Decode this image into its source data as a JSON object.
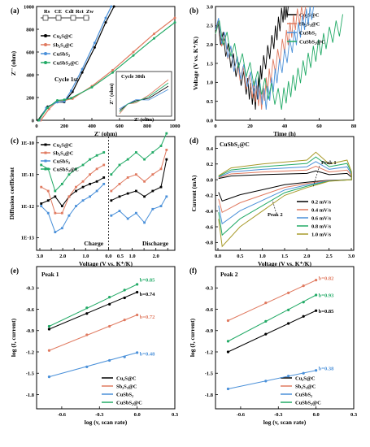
{
  "chart_data": [
    {
      "panel": "(a)",
      "type": "line",
      "xlabel": "Z' (ohm)",
      "ylabel": "Z'' (ohm)",
      "xlim": [
        0,
        1000
      ],
      "ylim": [
        0,
        1000
      ],
      "xticks": [
        "0",
        "200",
        "400",
        "600",
        "800",
        "1000"
      ],
      "yticks": [
        "0",
        "200",
        "400",
        "600",
        "800",
        "1000"
      ],
      "annotation": "Cycle 1st",
      "circuit": {
        "labels": [
          "Rs",
          "CE",
          "CdI",
          "Rct",
          "Zw"
        ]
      },
      "inset": {
        "title": "Cycle 30th",
        "ylabel": "Z'' (ohm)",
        "xlabel": "Z' (ohm)"
      },
      "series": [
        {
          "name": "Cu₂S@C",
          "color": "#000000",
          "x": [
            10,
            80,
            150,
            200,
            260,
            330,
            420,
            500,
            560
          ],
          "y": [
            0,
            120,
            160,
            160,
            250,
            420,
            640,
            860,
            1000
          ]
        },
        {
          "name": "Sb₂S₃@C",
          "color": "#e07a60",
          "x": [
            30,
            90,
            150,
            200,
            260,
            400,
            550,
            700,
            850,
            1000
          ],
          "y": [
            0,
            100,
            170,
            175,
            190,
            300,
            440,
            600,
            760,
            900
          ]
        },
        {
          "name": "CuSbS₂",
          "color": "#4a90d9",
          "x": [
            20,
            70,
            150,
            200,
            250,
            330,
            420,
            500,
            540
          ],
          "y": [
            0,
            110,
            160,
            165,
            260,
            450,
            680,
            900,
            1000
          ]
        },
        {
          "name": "CuSbS₂@C",
          "color": "#22aa66",
          "x": [
            15,
            80,
            150,
            200,
            250,
            400,
            550,
            700,
            850,
            1000
          ],
          "y": [
            0,
            110,
            175,
            180,
            195,
            290,
            420,
            570,
            720,
            860
          ]
        }
      ]
    },
    {
      "panel": "(b)",
      "type": "line",
      "xlabel": "Time (h)",
      "ylabel": "Voltage (V vs. K⁺/K)",
      "xlim": [
        0,
        90
      ],
      "ylim": [
        0,
        3
      ],
      "xticks": [
        "0",
        "20",
        "40",
        "60",
        "80"
      ],
      "yticks": [
        "0.0",
        "0.5",
        "1.0",
        "1.5",
        "2.0",
        "2.5",
        "3.0"
      ],
      "series": [
        {
          "name": "Cu₂S@C",
          "color": "#000000",
          "x": [
            0,
            10,
            20,
            26,
            30,
            38,
            44,
            48
          ],
          "y": [
            2.5,
            1.6,
            0.9,
            0.5,
            1.3,
            2.1,
            2.8,
            3.0
          ]
        },
        {
          "name": "Sb₂S₃@C",
          "color": "#e07a60",
          "x": [
            0,
            12,
            24,
            30,
            36,
            45,
            52,
            60
          ],
          "y": [
            2.5,
            1.5,
            0.8,
            0.5,
            1.2,
            2.0,
            2.6,
            3.0
          ]
        },
        {
          "name": "CuSbS₂",
          "color": "#4a90d9",
          "x": [
            0,
            12,
            25,
            33,
            40,
            50,
            58,
            65
          ],
          "y": [
            2.6,
            1.5,
            0.9,
            0.5,
            1.2,
            2.0,
            2.6,
            3.0
          ]
        },
        {
          "name": "CuSbS₂@C",
          "color": "#22aa66",
          "x": [
            0,
            15,
            30,
            43,
            52,
            62,
            72,
            85
          ],
          "y": [
            2.5,
            1.6,
            0.9,
            0.5,
            1.0,
            1.6,
            2.1,
            2.6
          ]
        }
      ]
    },
    {
      "panel": "(c)",
      "type": "scatter",
      "xlabel": "Voltage (V vs. K⁺/K)",
      "ylabel": "Diffusion coefficient",
      "yscale": "log",
      "xticks": [
        "3.0",
        "2.5",
        "2.0",
        "1.5",
        "1.0",
        "0.5",
        "0.0",
        "0.5",
        "1.0",
        "1.5",
        "2.0",
        "2.5"
      ],
      "yticks": [
        "1E-13",
        "1E-12",
        "1E-11",
        "1E-10"
      ],
      "annotations": [
        "Charge",
        "Discharge"
      ],
      "series": [
        {
          "name": "Cu₂S@C",
          "color": "#000000",
          "charge_x": [
            2.9,
            2.6,
            2.3,
            2.0,
            1.7,
            1.4,
            1.1,
            0.8,
            0.5,
            0.2
          ],
          "charge_y": [
            1.2e-12,
            1.5e-12,
            2e-12,
            1e-12,
            2e-12,
            3e-12,
            4e-12,
            5e-12,
            6e-12,
            8e-12
          ],
          "discharge_x": [
            0.1,
            0.4,
            0.7,
            1.0,
            1.3,
            1.6,
            1.9,
            2.1
          ],
          "discharge_y": [
            1.5e-12,
            2e-12,
            2.5e-12,
            3e-12,
            2e-12,
            3e-12,
            4e-12,
            3e-11
          ]
        },
        {
          "name": "Sb₂S₃@C",
          "color": "#e07a60",
          "charge_x": [
            2.9,
            2.6,
            2.3,
            2.0,
            1.7,
            1.4,
            1.1,
            0.8,
            0.5,
            0.2
          ],
          "charge_y": [
            4e-12,
            3e-12,
            6e-13,
            6e-13,
            2e-12,
            4e-12,
            6e-12,
            1e-11,
            1.5e-11,
            2e-11
          ],
          "discharge_x": [
            0.1,
            0.4,
            0.7,
            1.0,
            1.3,
            1.6,
            1.9,
            2.1
          ],
          "discharge_y": [
            3e-12,
            5e-12,
            8e-12,
            1e-11,
            6e-12,
            1e-11,
            1.5e-11,
            6e-11
          ]
        },
        {
          "name": "CuSbS₂",
          "color": "#4a90d9",
          "charge_x": [
            2.9,
            2.6,
            2.3,
            2.0,
            1.7,
            1.4,
            1.1,
            0.8,
            0.5,
            0.2
          ],
          "charge_y": [
            1e-12,
            6e-13,
            1.5e-13,
            2e-13,
            5e-13,
            1e-12,
            1.5e-12,
            2e-12,
            3e-12,
            5e-12
          ],
          "discharge_x": [
            0.1,
            0.4,
            0.7,
            1.0,
            1.3,
            1.6,
            1.9,
            2.1
          ],
          "discharge_y": [
            5e-13,
            7e-13,
            4e-13,
            6e-13,
            3e-13,
            8e-13,
            1e-12,
            2e-12
          ]
        },
        {
          "name": "CuSbS₂@C",
          "color": "#22aa66",
          "charge_x": [
            2.9,
            2.6,
            2.3,
            2.0,
            1.7,
            1.4,
            1.1,
            0.8,
            0.5,
            0.2
          ],
          "charge_y": [
            2e-11,
            1.5e-11,
            3e-12,
            5e-12,
            1e-11,
            1.5e-11,
            2e-11,
            3e-11,
            4e-11,
            5e-11
          ],
          "discharge_x": [
            0.1,
            0.4,
            0.7,
            1.0,
            1.3,
            1.6,
            1.9,
            2.1
          ],
          "discharge_y": [
            1e-11,
            2e-11,
            3e-11,
            5e-11,
            3e-11,
            5e-11,
            8e-11,
            2e-10
          ]
        }
      ]
    },
    {
      "panel": "(d)",
      "type": "line",
      "title": "CuSbS₂@C",
      "xlabel": "Voltage (V vs. K⁺/K)",
      "ylabel": "Current (mA)",
      "xlim": [
        0,
        3
      ],
      "ylim": [
        -0.9,
        0.55
      ],
      "xticks": [
        "0.0",
        "0.5",
        "1.0",
        "1.5",
        "2.0",
        "2.5",
        "3.0"
      ],
      "yticks": [
        "-0.8",
        "-0.6",
        "-0.4",
        "-0.2",
        "0.0",
        "0.2",
        "0.4"
      ],
      "annotations": [
        "Peak 1",
        "Peak 2"
      ],
      "series": [
        {
          "name": "0.2 mV/s",
          "color": "#000000",
          "scale": 0.2
        },
        {
          "name": "0.4 mV/s",
          "color": "#e07a60",
          "scale": 0.4
        },
        {
          "name": "0.6 mV/s",
          "color": "#4a90d9",
          "scale": 0.6
        },
        {
          "name": "0.8 mV/s",
          "color": "#22aa66",
          "scale": 0.8
        },
        {
          "name": "1.0 mV/s",
          "color": "#a89a2a",
          "scale": 1.0
        }
      ]
    },
    {
      "panel": "(e)",
      "type": "scatter",
      "title": "Peak 1",
      "xlabel": "log (v, scan rate)",
      "ylabel": "log (I, current)",
      "xlim": [
        -0.8,
        0.3
      ],
      "ylim": [
        -2.0,
        0.0
      ],
      "xticks": [
        "-0.6",
        "-0.3",
        "0.0",
        "0.3"
      ],
      "yticks": [
        "-0.3",
        "-0.6",
        "-0.9",
        "-1.2",
        "-1.5",
        "-1.8"
      ],
      "x": [
        -0.7,
        -0.4,
        -0.22,
        -0.1,
        0.0
      ],
      "series": [
        {
          "name": "Cu₂S@C",
          "color": "#000000",
          "b": "b=0.74",
          "y": [
            -0.88,
            -0.66,
            -0.53,
            -0.44,
            -0.36
          ]
        },
        {
          "name": "Sb₂S₃@C",
          "color": "#e07a60",
          "b": "b=0.72",
          "y": [
            -1.18,
            -0.96,
            -0.84,
            -0.75,
            -0.68
          ]
        },
        {
          "name": "CuSbS₂",
          "color": "#4a90d9",
          "b": "b=0.48",
          "y": [
            -1.55,
            -1.41,
            -1.32,
            -1.27,
            -1.21
          ]
        },
        {
          "name": "CuSbS₂@C",
          "color": "#22aa66",
          "b": "b=0.85",
          "y": [
            -0.84,
            -0.58,
            -0.43,
            -0.33,
            -0.25
          ]
        }
      ]
    },
    {
      "panel": "(f)",
      "type": "scatter",
      "title": "Peak 2",
      "xlabel": "log (v, scan rate)",
      "ylabel": "log (I, current)",
      "xlim": [
        -0.8,
        0.3
      ],
      "ylim": [
        -2.0,
        0.0
      ],
      "xticks": [
        "-0.6",
        "-0.3",
        "0.0",
        "0.3"
      ],
      "yticks": [
        "-0.3",
        "-0.6",
        "-0.9",
        "-1.2",
        "-1.5",
        "-1.8"
      ],
      "x": [
        -0.7,
        -0.4,
        -0.22,
        -0.1,
        0.0
      ],
      "series": [
        {
          "name": "Cu₂S@C",
          "color": "#000000",
          "b": "b=0.85",
          "y": [
            -1.2,
            -0.95,
            -0.8,
            -0.7,
            -0.62
          ]
        },
        {
          "name": "Sb₂S₃@C",
          "color": "#e07a60",
          "b": "b=0.82",
          "y": [
            -0.76,
            -0.51,
            -0.37,
            -0.27,
            -0.19
          ]
        },
        {
          "name": "CuSbS₂",
          "color": "#4a90d9",
          "b": "b=0.38",
          "y": [
            -1.72,
            -1.61,
            -1.54,
            -1.5,
            -1.46
          ]
        },
        {
          "name": "CuSbS₂@C",
          "color": "#22aa66",
          "b": "b=0.93",
          "y": [
            -1.05,
            -0.77,
            -0.61,
            -0.5,
            -0.4
          ]
        }
      ]
    }
  ]
}
